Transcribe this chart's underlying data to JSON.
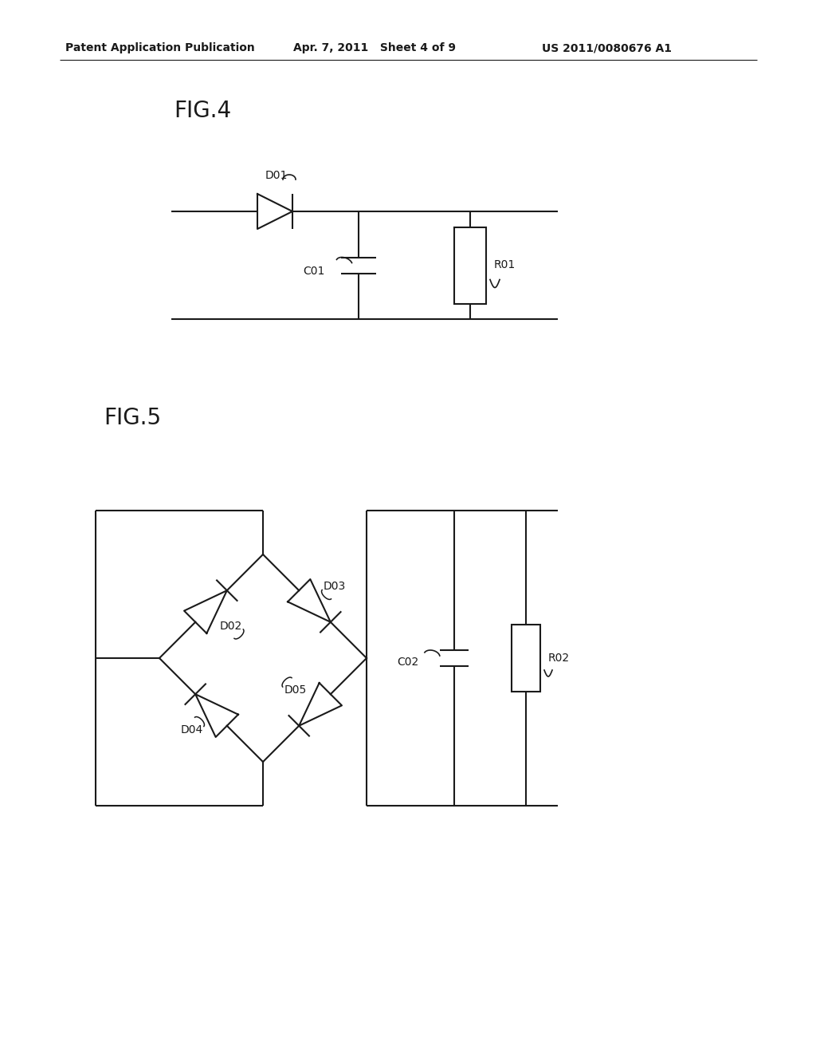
{
  "bg_color": "#ffffff",
  "line_color": "#1a1a1a",
  "header_left": "Patent Application Publication",
  "header_center": "Apr. 7, 2011   Sheet 4 of 9",
  "header_right": "US 2011/0080676 A1",
  "fig4_label": "FIG.4",
  "fig5_label": "FIG.5",
  "page_width": 1.0,
  "page_height": 1.0
}
